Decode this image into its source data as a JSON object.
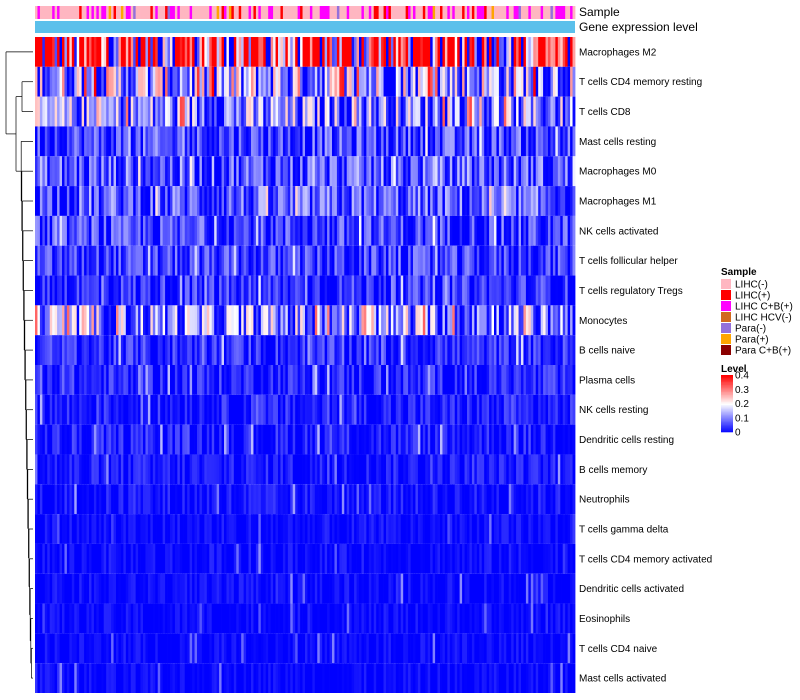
{
  "chart_data": {
    "type": "heatmap",
    "annotation_labels": [
      "Sample",
      "Gene expression level"
    ],
    "rows": [
      {
        "name": "Macrophages M2",
        "mean": 0.3
      },
      {
        "name": "T cells CD4 memory resting",
        "mean": 0.13
      },
      {
        "name": "T cells CD8",
        "mean": 0.1
      },
      {
        "name": "Mast cells resting",
        "mean": 0.05
      },
      {
        "name": "Macrophages M0",
        "mean": 0.06
      },
      {
        "name": "Macrophages M1",
        "mean": 0.06
      },
      {
        "name": "NK cells activated",
        "mean": 0.045
      },
      {
        "name": "T cells follicular helper",
        "mean": 0.04
      },
      {
        "name": "T cells regulatory  Tregs",
        "mean": 0.035
      },
      {
        "name": "Monocytes",
        "mean": 0.1
      },
      {
        "name": "B cells naive",
        "mean": 0.03
      },
      {
        "name": "Plasma cells",
        "mean": 0.025
      },
      {
        "name": "NK cells resting",
        "mean": 0.02
      },
      {
        "name": "Dendritic cells resting",
        "mean": 0.02
      },
      {
        "name": "B cells memory",
        "mean": 0.015
      },
      {
        "name": "Neutrophils",
        "mean": 0.012
      },
      {
        "name": "T cells gamma delta",
        "mean": 0.006
      },
      {
        "name": "T cells CD4 memory activated",
        "mean": 0.006
      },
      {
        "name": "Dendritic cells activated",
        "mean": 0.005
      },
      {
        "name": "Eosinophils",
        "mean": 0.004
      },
      {
        "name": "T cells CD4 naive",
        "mean": 0.004
      },
      {
        "name": "Mast cells activated",
        "mean": 0.003
      }
    ],
    "n_columns": 220,
    "legend_sample": {
      "title": "Sample",
      "items": [
        {
          "label": "LIHC(-)",
          "color": "#FFB6C1"
        },
        {
          "label": "LIHC(+)",
          "color": "#FF0000"
        },
        {
          "label": "LIHC C+B(+)",
          "color": "#FF00FF"
        },
        {
          "label": "LIHC HCV(-)",
          "color": "#D2691E"
        },
        {
          "label": "Para(-)",
          "color": "#9370DB"
        },
        {
          "label": "Para(+)",
          "color": "#FFA500"
        },
        {
          "label": "Para C+B(+)",
          "color": "#8B0000"
        }
      ]
    },
    "legend_level": {
      "title": "Level",
      "ticks": [
        "0.4",
        "0.3",
        "0.2",
        "0.1",
        "0"
      ],
      "range": [
        0,
        0.4
      ]
    },
    "color_scale": {
      "low": "#0000FF",
      "mid": "#FFFFFF",
      "high": "#FF0000"
    },
    "gene_expression_color": "#5BC0EB"
  }
}
